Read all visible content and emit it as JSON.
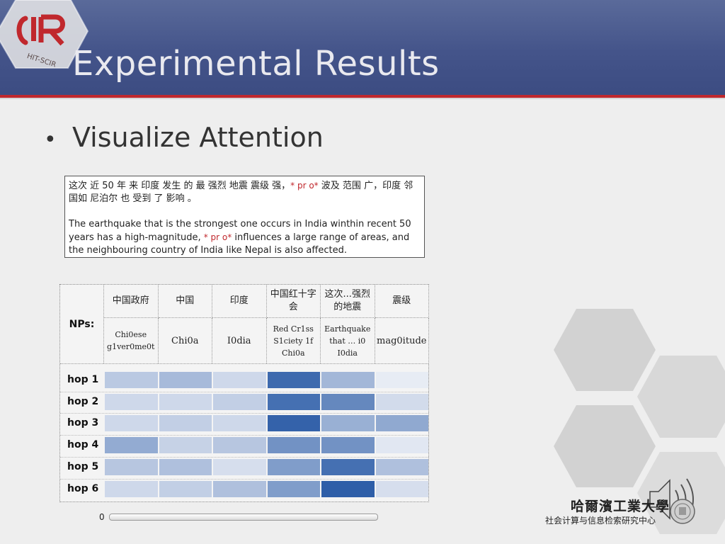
{
  "slide": {
    "title": "Experimental Results",
    "logo_text": "HIT-SCIR",
    "bullet": "Visualize Attention"
  },
  "example": {
    "zh_part1": "这次 近 50 年 来 印度 发生 的 最 强烈 地震 震级 强，",
    "zh_marker": "* pr o*",
    "zh_part2": " 波及 范围 广，印度 邻国如 尼泊尔 也 受到 了 影响 。",
    "en_part1": "The earthquake that is the strongest one occurs in India winthin recent 50 years has a high-magnitude, ",
    "en_marker": "* pr o*",
    "en_part2": " influences a large range of areas, and the neighbouring country of India like Nepal is also affected."
  },
  "table": {
    "nps_label": "NPs:",
    "columns": [
      {
        "zh": "中国政府",
        "en_line1": "Chi0ese",
        "en_line2": "g1ver0me0t",
        "en_line3": ""
      },
      {
        "zh": "中国",
        "en_line1": "Chi0a",
        "en_line2": "",
        "en_line3": ""
      },
      {
        "zh": "印度",
        "en_line1": "I0dia",
        "en_line2": "",
        "en_line3": ""
      },
      {
        "zh": "中国红十字会",
        "en_line1": "Red Cr1ss",
        "en_line2": "S1ciety 1f",
        "en_line3": "Chi0a"
      },
      {
        "zh": "这次...强烈的地震",
        "en_line1": "Earthquake",
        "en_line2": "that … i0",
        "en_line3": "I0dia"
      },
      {
        "zh": "震级",
        "en_line1": "mag0itude",
        "en_line2": "",
        "en_line3": ""
      }
    ],
    "hops": [
      {
        "label": "hop 1",
        "weights": [
          0.28,
          0.38,
          0.18,
          0.92,
          0.4,
          0.05
        ]
      },
      {
        "label": "hop 2",
        "weights": [
          0.18,
          0.18,
          0.24,
          0.88,
          0.72,
          0.16
        ]
      },
      {
        "label": "hop 3",
        "weights": [
          0.18,
          0.24,
          0.18,
          0.97,
          0.45,
          0.5
        ]
      },
      {
        "label": "hop 4",
        "weights": [
          0.48,
          0.22,
          0.3,
          0.65,
          0.65,
          0.08
        ]
      },
      {
        "label": "hop 5",
        "weights": [
          0.3,
          0.34,
          0.14,
          0.58,
          0.88,
          0.34
        ]
      },
      {
        "label": "hop 6",
        "weights": [
          0.18,
          0.24,
          0.34,
          0.58,
          1.0,
          0.14
        ]
      }
    ],
    "scale_min_label": "0"
  },
  "branding": {
    "univ_name": "哈爾濱工業大學",
    "center_name": "社会计算与信息检索研究中心"
  },
  "colors": {
    "header": "#44548a",
    "accent_red": "#c0282d",
    "heat_low": "#f1f3f8",
    "heat_high": "#2e5ea8",
    "hex": "#d4d4d4"
  },
  "icons": [
    "speaker-icon",
    "university-seal-icon",
    "hitscir-logo"
  ]
}
